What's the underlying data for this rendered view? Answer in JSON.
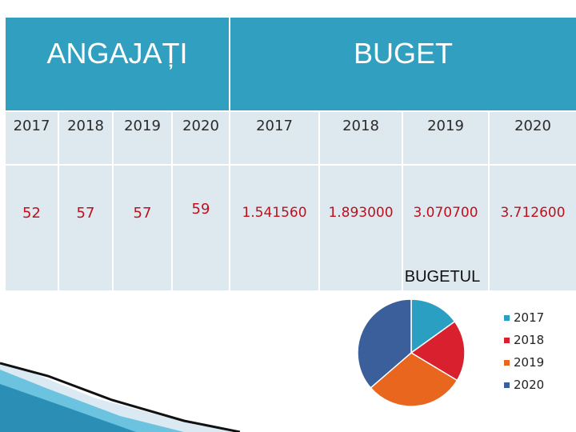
{
  "table": {
    "header_left": "ANGAJAȚI",
    "header_right": "BUGET",
    "years_left": [
      "2017",
      "2018",
      "2019",
      "2020"
    ],
    "employees": [
      "52",
      "57",
      "57",
      "59"
    ],
    "years_right": [
      "2017",
      "2018",
      "2019",
      "2020"
    ],
    "budget": [
      "1.541560",
      "1.893000",
      "3.070700",
      "3.712600"
    ]
  },
  "colors": {
    "header": "#31a0c0",
    "cell": "#dde8ef",
    "value_text": "#c0101e"
  },
  "chart_data": {
    "type": "pie",
    "title": "BUGETUL",
    "categories": [
      "2017",
      "2018",
      "2019",
      "2020"
    ],
    "values": [
      1.54156,
      1.893,
      3.0707,
      3.7126
    ],
    "colors": [
      "#2b9fc2",
      "#d9202e",
      "#e8661e",
      "#3a5f9a"
    ],
    "legend_position": "right"
  }
}
